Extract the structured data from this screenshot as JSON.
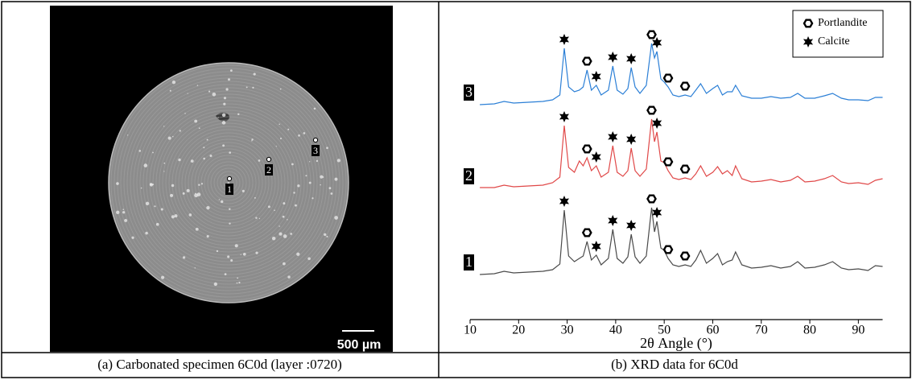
{
  "panel_a": {
    "points": [
      "1",
      "2",
      "3"
    ],
    "scale_bar": "500 µm"
  },
  "captions": [
    "(a) Carbonated specimen 6C0d (layer :0720)",
    "(b) XRD data for 6C0d"
  ],
  "chart_data": {
    "type": "line",
    "x_label": "2θ Angle (°)",
    "xlim": [
      10,
      95
    ],
    "xticks": [
      10,
      20,
      30,
      40,
      50,
      60,
      70,
      80,
      90
    ],
    "legend_position": "upper right",
    "legend": [
      {
        "name": "Portlandite",
        "marker": "hexagon",
        "peaks": [
          34.1,
          47.4,
          50.8,
          54.3
        ]
      },
      {
        "name": "Calcite",
        "marker": "star",
        "peaks": [
          29.4,
          36,
          39.4,
          43.2,
          48.5
        ]
      }
    ],
    "x": [
      12,
      15,
      17,
      19,
      22,
      25,
      27,
      28.5,
      29.4,
      30.3,
      31.5,
      32.5,
      33.3,
      34.1,
      35,
      36,
      37,
      38.5,
      39.4,
      40.3,
      41.5,
      42.5,
      43.2,
      44,
      45,
      46.3,
      47.4,
      48,
      48.5,
      49.3,
      50,
      50.8,
      51.8,
      53,
      54.3,
      55.5,
      56.5,
      57.5,
      58.7,
      60,
      61,
      62,
      63,
      64,
      64.7,
      66,
      68,
      70,
      72,
      74,
      76,
      77.5,
      79,
      81,
      83,
      84.7,
      86.5,
      88,
      90,
      92,
      93.5,
      95
    ],
    "series": [
      {
        "name": "1",
        "color": "#4a4a4a",
        "values": [
          2,
          3,
          6,
          4,
          5,
          6,
          8,
          15,
          82,
          25,
          18,
          22,
          25,
          43,
          20,
          26,
          14,
          22,
          58,
          22,
          16,
          24,
          52,
          24,
          16,
          25,
          85,
          55,
          68,
          35,
          32,
          22,
          14,
          12,
          14,
          12,
          20,
          32,
          16,
          22,
          28,
          14,
          18,
          20,
          30,
          14,
          10,
          11,
          13,
          10,
          12,
          18,
          10,
          11,
          14,
          18,
          10,
          8,
          9,
          7,
          13,
          12
        ]
      },
      {
        "name": "2",
        "color": "#e04848",
        "values": [
          3,
          3,
          6,
          4,
          5,
          6,
          9,
          16,
          80,
          28,
          22,
          36,
          30,
          40,
          24,
          30,
          16,
          22,
          55,
          22,
          17,
          24,
          52,
          24,
          17,
          26,
          88,
          60,
          72,
          36,
          34,
          24,
          15,
          13,
          15,
          13,
          20,
          30,
          17,
          22,
          29,
          20,
          24,
          18,
          30,
          14,
          10,
          11,
          13,
          10,
          12,
          17,
          10,
          11,
          14,
          18,
          10,
          8,
          9,
          7,
          12,
          14
        ]
      },
      {
        "name": "3",
        "color": "#2b7fd6",
        "values": [
          2,
          3,
          6,
          4,
          5,
          6,
          8,
          14,
          72,
          24,
          18,
          20,
          24,
          45,
          20,
          26,
          14,
          20,
          50,
          20,
          15,
          22,
          48,
          24,
          16,
          26,
          78,
          60,
          68,
          34,
          30,
          24,
          14,
          12,
          14,
          12,
          20,
          28,
          16,
          22,
          26,
          14,
          18,
          18,
          26,
          13,
          10,
          10,
          12,
          10,
          11,
          16,
          10,
          10,
          13,
          16,
          10,
          8,
          8,
          7,
          11,
          11
        ]
      }
    ]
  }
}
